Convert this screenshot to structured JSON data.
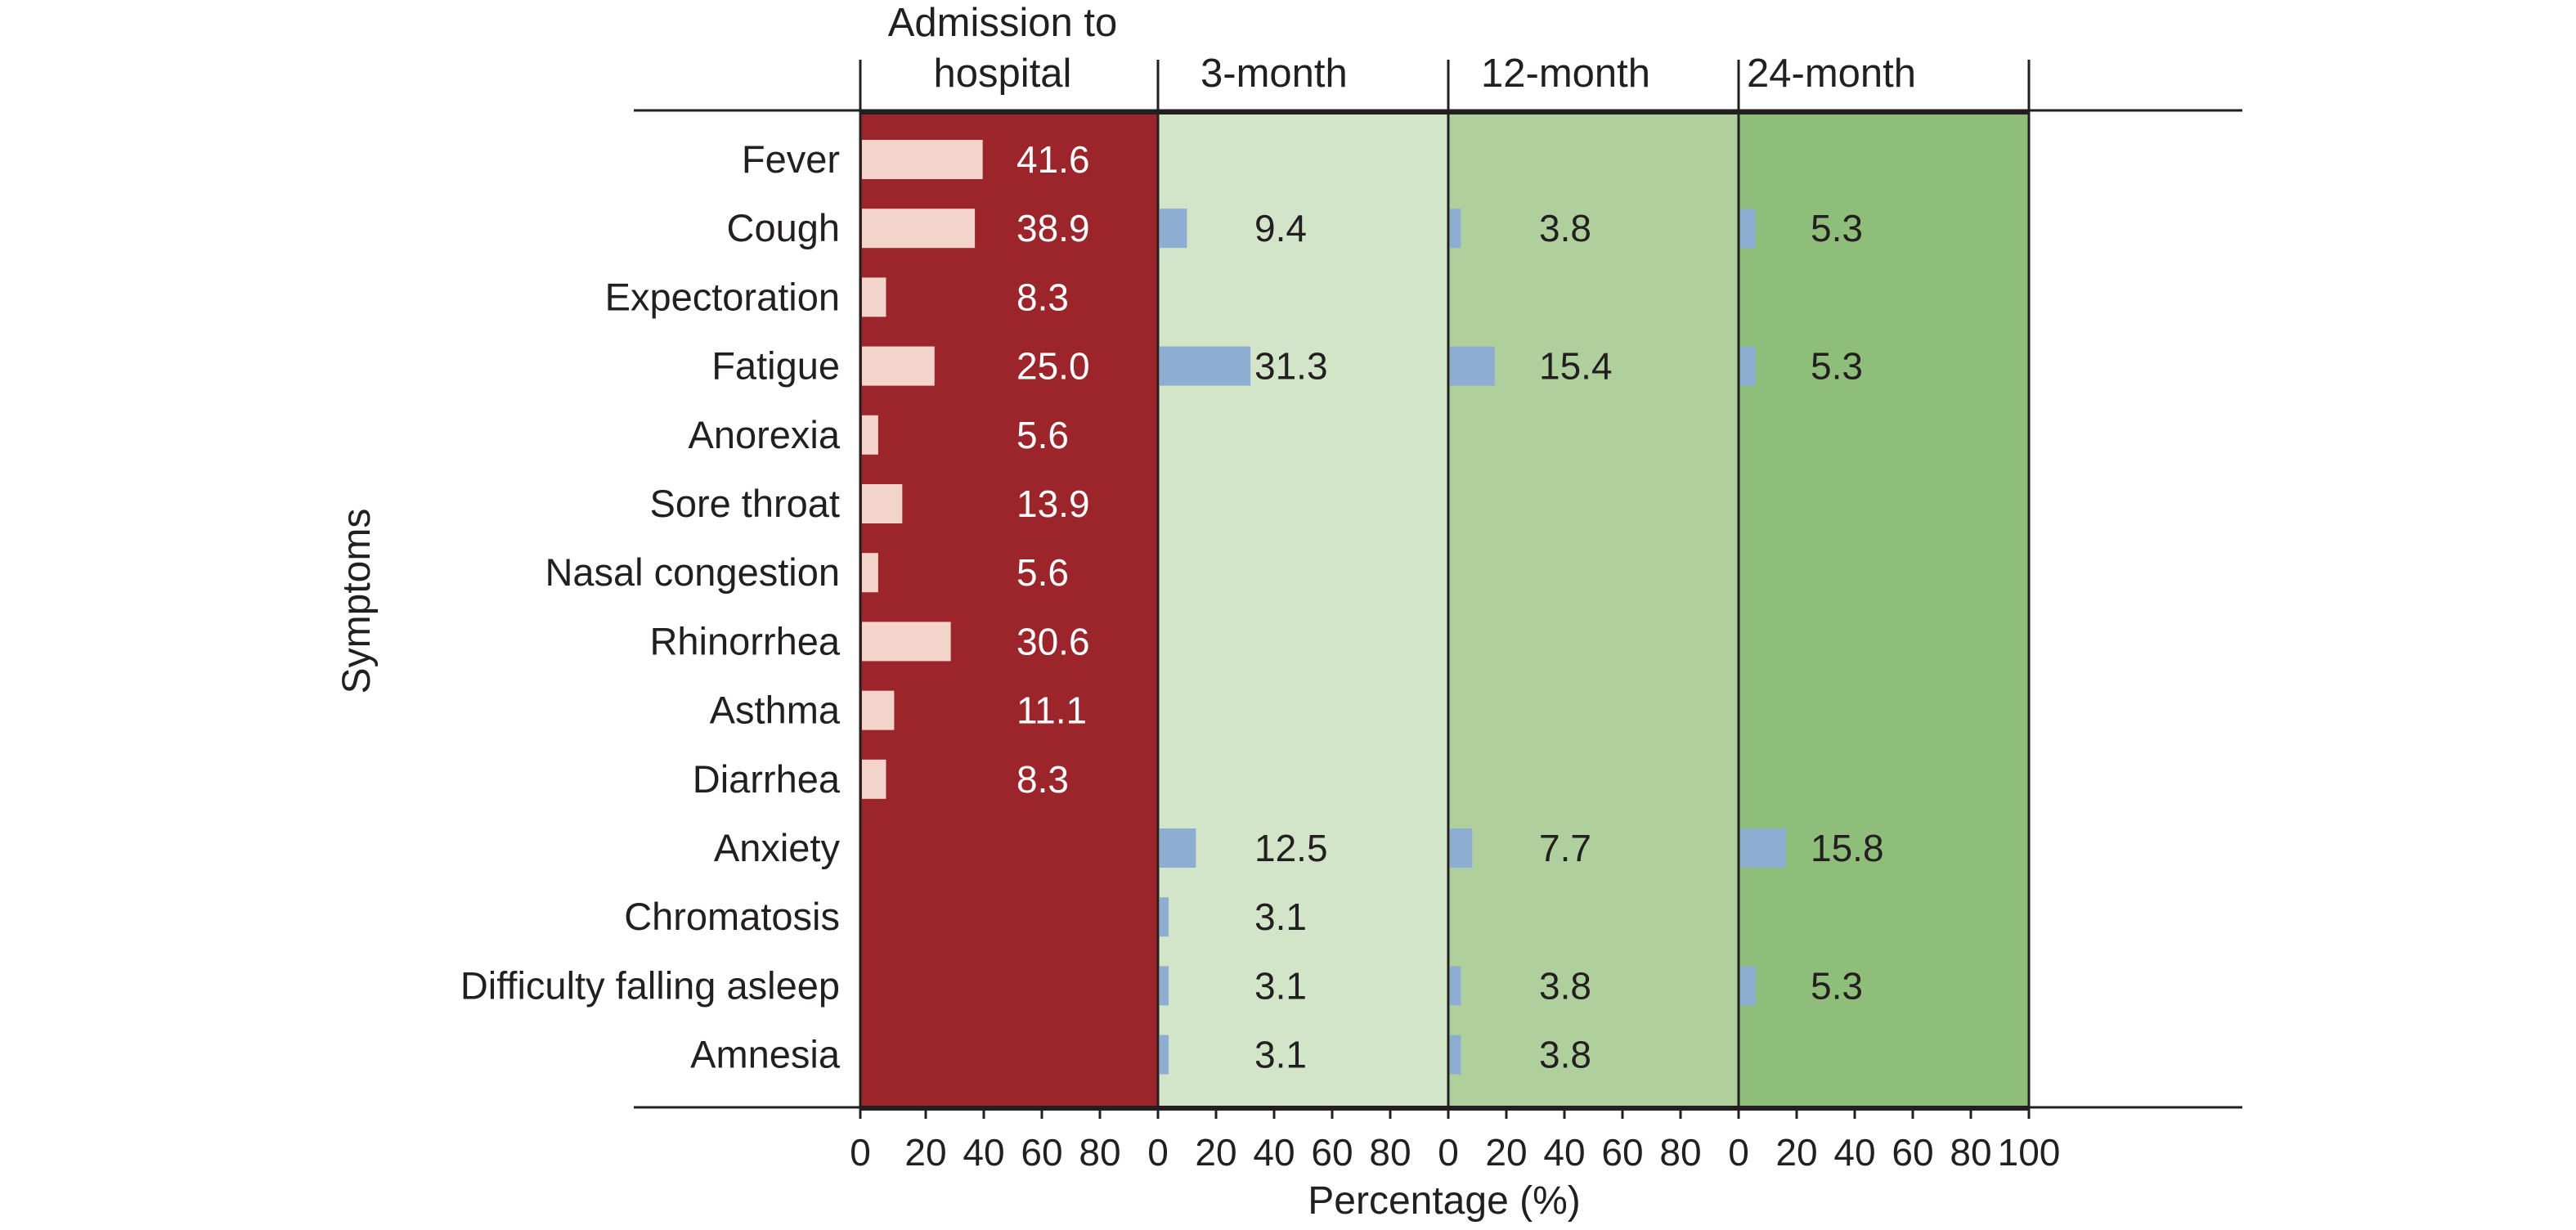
{
  "chart_data": {
    "type": "bar",
    "orientation": "horizontal",
    "title": "",
    "xlabel": "Percentage (%)",
    "ylabel": "Symptoms",
    "xlim": [
      0,
      100
    ],
    "xticks": [
      0,
      20,
      40,
      60,
      80
    ],
    "last_tick_label": "100",
    "grid": false,
    "legend": "none",
    "categories": [
      "Fever",
      "Cough",
      "Expectoration",
      "Fatigue",
      "Anorexia",
      "Sore throat",
      "Nasal congestion",
      "Rhinorrhea",
      "Asthma",
      "Diarrhea",
      "Anxiety",
      "Chromatosis",
      "Difficulty falling asleep",
      "Amnesia"
    ],
    "series": [
      {
        "name": "Admission to hospital",
        "header_lines": [
          "Admission to",
          "hospital"
        ],
        "panel_color": "#9c252b",
        "bar_color": "#f3d4cb",
        "label_color": "#ffffff",
        "values": [
          41.6,
          38.9,
          8.3,
          25.0,
          5.6,
          13.9,
          5.6,
          30.6,
          11.1,
          8.3,
          null,
          null,
          null,
          null
        ],
        "labels": [
          "41.6",
          "38.9",
          "8.3",
          "25.0",
          "5.6",
          "13.9",
          "5.6",
          "30.6",
          "11.1",
          "8.3",
          "",
          "",
          "",
          ""
        ]
      },
      {
        "name": "3-month",
        "header_lines": [
          "3-month"
        ],
        "panel_color": "#d2e5c8",
        "bar_color": "#8eadd2",
        "label_color": "#231f20",
        "values": [
          null,
          9.4,
          null,
          31.3,
          null,
          null,
          null,
          null,
          null,
          null,
          12.5,
          3.1,
          3.1,
          3.1
        ],
        "labels": [
          "",
          "9.4",
          "",
          "31.3",
          "",
          "",
          "",
          "",
          "",
          "",
          "12.5",
          "3.1",
          "3.1",
          "3.1"
        ]
      },
      {
        "name": "12-month",
        "header_lines": [
          "12-month"
        ],
        "panel_color": "#afd09c",
        "bar_color": "#8eadd2",
        "label_color": "#231f20",
        "values": [
          null,
          3.8,
          null,
          15.4,
          null,
          null,
          null,
          null,
          null,
          null,
          7.7,
          null,
          3.8,
          3.8
        ],
        "labels": [
          "",
          "3.8",
          "",
          "15.4",
          "",
          "",
          "",
          "",
          "",
          "",
          "7.7",
          "",
          "3.8",
          "3.8"
        ]
      },
      {
        "name": "24-month",
        "header_lines": [
          "24-month"
        ],
        "panel_color": "#8fbe7a",
        "bar_color": "#8eadd2",
        "label_color": "#231f20",
        "values": [
          null,
          5.3,
          null,
          5.3,
          null,
          null,
          null,
          null,
          null,
          null,
          15.8,
          null,
          5.3,
          null
        ],
        "labels": [
          "",
          "5.3",
          "",
          "5.3",
          "",
          "",
          "",
          "",
          "",
          "",
          "15.8",
          "",
          "5.3",
          ""
        ]
      }
    ]
  }
}
